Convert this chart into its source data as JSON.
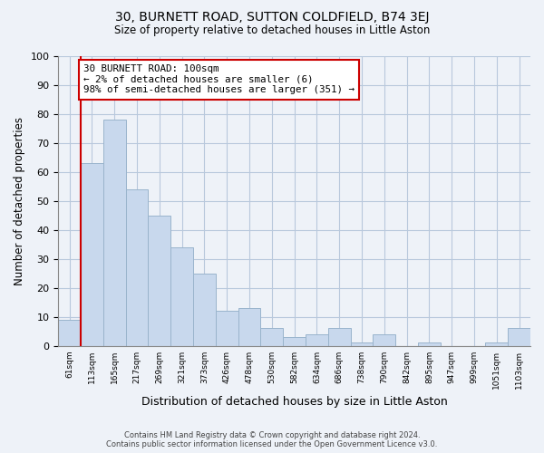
{
  "title": "30, BURNETT ROAD, SUTTON COLDFIELD, B74 3EJ",
  "subtitle": "Size of property relative to detached houses in Little Aston",
  "xlabel": "Distribution of detached houses by size in Little Aston",
  "ylabel": "Number of detached properties",
  "bar_color": "#c8d8ed",
  "bar_edge_color": "#9ab4cc",
  "annotation_line_color": "#cc0000",
  "background_color": "#eef2f8",
  "plot_bg_color": "#eef2f8",
  "grid_color": "#b8c8dc",
  "categories": [
    "61sqm",
    "113sqm",
    "165sqm",
    "217sqm",
    "269sqm",
    "321sqm",
    "373sqm",
    "426sqm",
    "478sqm",
    "530sqm",
    "582sqm",
    "634sqm",
    "686sqm",
    "738sqm",
    "790sqm",
    "842sqm",
    "895sqm",
    "947sqm",
    "999sqm",
    "1051sqm",
    "1103sqm"
  ],
  "values": [
    9,
    63,
    78,
    54,
    45,
    34,
    25,
    12,
    13,
    6,
    3,
    4,
    6,
    1,
    4,
    0,
    1,
    0,
    0,
    1,
    6
  ],
  "ylim": [
    0,
    100
  ],
  "yticks": [
    0,
    10,
    20,
    30,
    40,
    50,
    60,
    70,
    80,
    90,
    100
  ],
  "property_line_x": 0.5,
  "annotation_box_text": "30 BURNETT ROAD: 100sqm\n← 2% of detached houses are smaller (6)\n98% of semi-detached houses are larger (351) →",
  "footer_line1": "Contains HM Land Registry data © Crown copyright and database right 2024.",
  "footer_line2": "Contains public sector information licensed under the Open Government Licence v3.0.",
  "fig_width": 6.0,
  "fig_height": 5.0,
  "dpi": 100
}
